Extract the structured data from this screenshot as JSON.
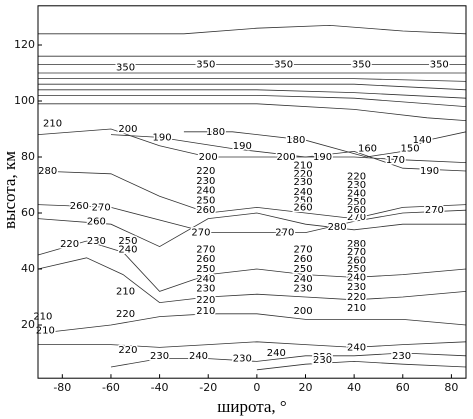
{
  "chart_data": {
    "type": "contour",
    "xlabel": "широта, °",
    "ylabel": "высота, км",
    "xlim": [
      -90,
      86
    ],
    "ylim": [
      1,
      134
    ],
    "xticks": [
      -80,
      -60,
      -40,
      -20,
      0,
      20,
      40,
      60,
      80
    ],
    "yticks": [
      20,
      40,
      60,
      80,
      100,
      120
    ],
    "color": "#333333",
    "contours": [
      {
        "x": [
          -90,
          -60,
          -30,
          0,
          30,
          60,
          86
        ],
        "y": [
          124,
          124,
          124,
          126,
          127,
          125,
          124
        ]
      },
      {
        "x": [
          -90,
          -40,
          0,
          40,
          86
        ],
        "y": [
          116,
          116,
          116,
          116,
          116
        ]
      },
      {
        "x": [
          -90,
          -40,
          0,
          40,
          86
        ],
        "y": [
          113,
          113,
          113,
          113,
          113
        ]
      },
      {
        "x": [
          -90,
          -40,
          0,
          40,
          86
        ],
        "y": [
          110,
          110,
          110,
          110,
          110
        ]
      },
      {
        "x": [
          -90,
          -40,
          0,
          40,
          86
        ],
        "y": [
          108,
          108,
          108,
          108,
          107
        ]
      },
      {
        "x": [
          -90,
          -40,
          0,
          40,
          86
        ],
        "y": [
          106,
          106,
          106,
          106,
          104
        ]
      },
      {
        "x": [
          -90,
          -40,
          0,
          40,
          86
        ],
        "y": [
          104,
          104,
          104,
          103,
          101
        ]
      },
      {
        "x": [
          -90,
          -40,
          0,
          40,
          86
        ],
        "y": [
          102,
          102,
          102,
          101,
          98
        ]
      },
      {
        "x": [
          -90,
          -40,
          0,
          40,
          70,
          86
        ],
        "y": [
          99,
          99,
          99,
          97,
          94,
          93
        ]
      },
      {
        "x": [
          -90,
          -60,
          -40,
          -20,
          0,
          20,
          40,
          60,
          86
        ],
        "y": [
          88,
          90,
          84,
          80,
          80,
          80,
          80,
          79,
          78
        ]
      },
      {
        "x": [
          -60,
          -40,
          -10,
          20,
          40,
          60,
          86
        ],
        "y": [
          88,
          87,
          83,
          80,
          82,
          76,
          75
        ]
      },
      {
        "x": [
          -30,
          -10,
          20,
          45,
          60,
          70,
          86
        ],
        "y": [
          89,
          89,
          86,
          80,
          82,
          86,
          89
        ]
      },
      {
        "x": [
          -90,
          -60,
          -40,
          -20,
          0,
          20,
          40,
          60,
          86
        ],
        "y": [
          75,
          74,
          66,
          60,
          62,
          60,
          58,
          62,
          63
        ]
      },
      {
        "x": [
          -90,
          -60,
          -20,
          0,
          20,
          40,
          60,
          86
        ],
        "y": [
          63,
          62,
          53,
          53,
          53,
          57,
          60,
          61
        ]
      },
      {
        "x": [
          -90,
          -60,
          -40,
          -20,
          0,
          20,
          40,
          60,
          86
        ],
        "y": [
          58,
          56,
          48,
          58,
          60,
          56,
          54,
          56,
          56
        ]
      },
      {
        "x": [
          -90,
          -70,
          -55,
          -40,
          -20,
          0,
          20,
          40,
          60,
          86
        ],
        "y": [
          45,
          50,
          46,
          32,
          38,
          40,
          38,
          37,
          38,
          40
        ]
      },
      {
        "x": [
          -90,
          -70,
          -55,
          -40,
          -20,
          0,
          20,
          40,
          60,
          86
        ],
        "y": [
          40,
          44,
          38,
          28,
          30,
          31,
          30,
          29,
          30,
          32
        ]
      },
      {
        "x": [
          -90,
          -60,
          -40,
          -20,
          0,
          20,
          40,
          60,
          86
        ],
        "y": [
          17,
          20,
          23,
          24,
          24,
          22,
          22,
          22,
          20
        ]
      },
      {
        "x": [
          -90,
          -60,
          -40,
          -20,
          0,
          20,
          40,
          60,
          86
        ],
        "y": [
          13,
          13,
          12,
          13,
          14,
          13,
          12,
          13,
          14
        ]
      },
      {
        "x": [
          -60,
          -40,
          -20,
          0,
          20,
          40,
          60,
          86
        ],
        "y": [
          5,
          8,
          8,
          7,
          9,
          9,
          10,
          9
        ]
      },
      {
        "x": [
          0,
          20,
          40,
          60,
          86
        ],
        "y": [
          4,
          6,
          7,
          6,
          5
        ]
      }
    ],
    "contour_labels": {
      "x": [
        -54,
        -21,
        11,
        43,
        75,
        -84,
        -53,
        -39,
        -17,
        -6,
        16,
        -20,
        12,
        27,
        45.5,
        63,
        68,
        57,
        71,
        -86,
        -73,
        -64,
        -66,
        -53,
        -53,
        -66,
        -77,
        -23,
        11.5,
        33,
        41,
        73,
        -21,
        -21,
        -21,
        -21,
        -21,
        19,
        19,
        19,
        19,
        19,
        19,
        41,
        41,
        41,
        41,
        41,
        -21,
        -21,
        -21,
        -21,
        -21,
        -21,
        -21,
        19,
        19,
        19,
        19,
        19,
        19,
        41,
        41,
        41,
        41,
        41,
        41,
        41,
        41,
        -54,
        -54,
        -88,
        -87,
        -53,
        -40,
        -24,
        -6,
        8,
        27,
        27,
        41,
        59.5
      ],
      "y": [
        112,
        113,
        113,
        113,
        113,
        92,
        90,
        87,
        89,
        84,
        86,
        80,
        80,
        80,
        83,
        83,
        86,
        79,
        75,
        75,
        62.5,
        62,
        57,
        50,
        47,
        50,
        49,
        53,
        53,
        55,
        58.5,
        61,
        75,
        71.5,
        68,
        64.5,
        61,
        77,
        74,
        71,
        67.5,
        64.5,
        62,
        73,
        70,
        67,
        64,
        61,
        47,
        43.5,
        40,
        36.5,
        33,
        29,
        25,
        47,
        43.5,
        40,
        36.5,
        33,
        25,
        49,
        46,
        43,
        40,
        37,
        33.5,
        30,
        26,
        24,
        32,
        23,
        18,
        11,
        9,
        9,
        8,
        10,
        8.5,
        7.5,
        12,
        9,
        10
      ],
      "values": [
        350,
        350,
        350,
        350,
        350,
        210,
        200,
        190,
        180,
        190,
        180,
        200,
        200,
        190,
        160,
        150,
        140,
        170,
        190,
        280,
        260,
        270,
        260,
        250,
        240,
        230,
        220,
        270,
        270,
        280,
        270,
        270,
        220,
        230,
        240,
        250,
        260,
        210,
        220,
        230,
        240,
        250,
        260,
        220,
        230,
        240,
        250,
        260,
        270,
        260,
        250,
        240,
        230,
        220,
        210,
        270,
        260,
        250,
        240,
        230,
        200,
        280,
        270,
        260,
        250,
        240,
        230,
        220,
        210,
        220,
        210,
        210,
        210,
        220,
        230,
        240,
        230,
        240,
        250,
        230,
        240,
        230
      ]
    }
  }
}
